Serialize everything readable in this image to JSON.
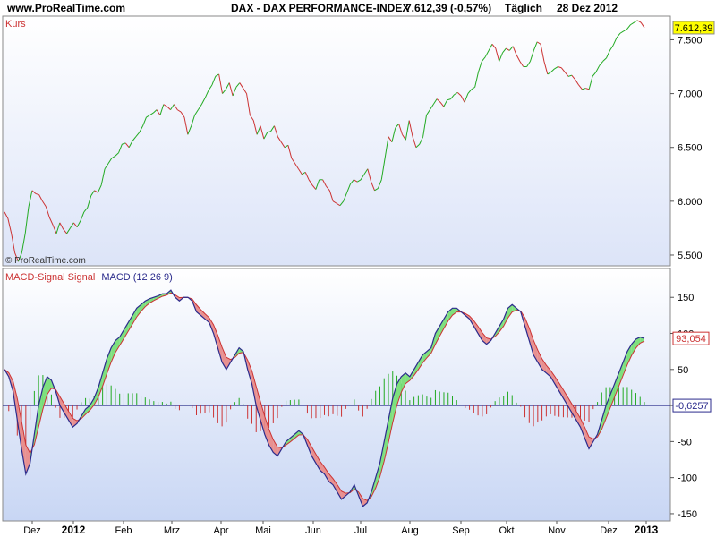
{
  "header": {
    "site": "www.ProRealTime.com",
    "title": "DAX - DAX PERFORMANCE-INDEX",
    "quote": "7.612,39 (-0,57%)",
    "period": "Täglich",
    "date": "28 Dez 2012"
  },
  "colors": {
    "up": "#22aa22",
    "down": "#cc3333",
    "macd_line": "#2b2b8c",
    "signal_line": "#cc3333",
    "area_up": "#7ee07e",
    "area_down": "#e89090",
    "price_badge": "#ffff00",
    "macd_badge": "#cc3333"
  },
  "chart_data": [
    {
      "type": "line",
      "title": "Kurs",
      "ylim": [
        5400,
        7720
      ],
      "yticks": [
        5500,
        6000,
        6500,
        7000,
        7500
      ],
      "ytick_labels": [
        "5.500",
        "6.000",
        "6.500",
        "7.000",
        "7.500"
      ],
      "last_value": 7612.39,
      "last_label": "7.612,39",
      "watermark": "© ProRealTime.com",
      "x_labels": [
        "Dez",
        "2012",
        "Feb",
        "Mrz",
        "Apr",
        "Mai",
        "Jun",
        "Jul",
        "Aug",
        "Sep",
        "Okt",
        "Nov",
        "Dez",
        "2013"
      ],
      "values": [
        5900,
        5840,
        5700,
        5520,
        5440,
        5520,
        5700,
        5950,
        6100,
        6070,
        6060,
        6000,
        5950,
        5850,
        5780,
        5700,
        5800,
        5740,
        5700,
        5750,
        5800,
        5760,
        5820,
        5900,
        5940,
        6050,
        6100,
        6080,
        6150,
        6300,
        6350,
        6400,
        6420,
        6450,
        6530,
        6540,
        6500,
        6560,
        6600,
        6640,
        6700,
        6780,
        6800,
        6820,
        6850,
        6800,
        6900,
        6880,
        6850,
        6900,
        6850,
        6830,
        6780,
        6620,
        6700,
        6800,
        6850,
        6900,
        6960,
        7030,
        7080,
        7160,
        7180,
        7000,
        7040,
        7100,
        6980,
        7060,
        7100,
        7050,
        7000,
        6800,
        6750,
        6620,
        6700,
        6580,
        6640,
        6650,
        6700,
        6600,
        6550,
        6500,
        6520,
        6400,
        6350,
        6300,
        6250,
        6270,
        6200,
        6150,
        6110,
        6200,
        6200,
        6140,
        6100,
        6000,
        5980,
        5960,
        6000,
        6080,
        6160,
        6200,
        6180,
        6200,
        6250,
        6300,
        6180,
        6100,
        6120,
        6200,
        6400,
        6600,
        6550,
        6680,
        6720,
        6620,
        6570,
        6750,
        6600,
        6500,
        6530,
        6600,
        6800,
        6850,
        6900,
        6950,
        6920,
        6880,
        6940,
        6950,
        6990,
        7010,
        6980,
        6920,
        7000,
        7040,
        7060,
        7200,
        7300,
        7340,
        7400,
        7460,
        7420,
        7300,
        7380,
        7420,
        7400,
        7440,
        7360,
        7300,
        7250,
        7250,
        7300,
        7400,
        7480,
        7460,
        7300,
        7180,
        7200,
        7230,
        7250,
        7240,
        7200,
        7160,
        7170,
        7130,
        7080,
        7040,
        7050,
        7040,
        7160,
        7200,
        7260,
        7300,
        7330,
        7400,
        7450,
        7520,
        7560,
        7580,
        7600,
        7640,
        7660,
        7680,
        7660,
        7612.39
      ]
    },
    {
      "type": "area",
      "title": "MACD-Signal Signal",
      "series_name": "MACD (12 26 9)",
      "ylim": [
        -160,
        190
      ],
      "yticks": [
        150,
        100,
        50,
        0,
        -50,
        -100,
        -150
      ],
      "ytick_labels": [
        "150",
        "100",
        "50",
        "0",
        "-50",
        "-100",
        "-150"
      ],
      "macd_last_label": "93,054",
      "histogram_last_label": "-0,6257",
      "macd": [
        50,
        40,
        20,
        -20,
        -60,
        -95,
        -80,
        -40,
        0,
        25,
        40,
        35,
        20,
        0,
        -10,
        -20,
        -30,
        -25,
        -15,
        -5,
        0,
        10,
        25,
        45,
        65,
        80,
        90,
        95,
        105,
        115,
        125,
        135,
        140,
        145,
        148,
        150,
        152,
        155,
        155,
        160,
        150,
        145,
        150,
        150,
        145,
        130,
        125,
        120,
        115,
        100,
        80,
        60,
        50,
        60,
        70,
        80,
        75,
        50,
        30,
        0,
        -20,
        -40,
        -55,
        -65,
        -70,
        -60,
        -50,
        -45,
        -40,
        -35,
        -40,
        -55,
        -70,
        -80,
        -90,
        -95,
        -105,
        -110,
        -120,
        -130,
        -125,
        -120,
        -110,
        -125,
        -140,
        -135,
        -120,
        -100,
        -80,
        -50,
        -20,
        10,
        30,
        40,
        45,
        40,
        50,
        60,
        70,
        75,
        80,
        100,
        110,
        120,
        130,
        135,
        135,
        130,
        125,
        120,
        110,
        100,
        90,
        85,
        90,
        100,
        110,
        120,
        135,
        140,
        135,
        130,
        110,
        90,
        70,
        60,
        50,
        45,
        40,
        30,
        20,
        10,
        0,
        -10,
        -20,
        -30,
        -45,
        -60,
        -50,
        -40,
        -20,
        0,
        15,
        30,
        45,
        60,
        75,
        85,
        92,
        95,
        93
      ]
    }
  ]
}
